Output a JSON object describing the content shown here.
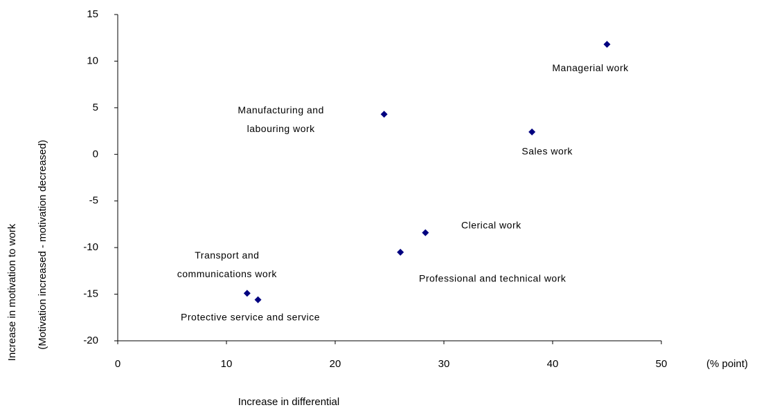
{
  "chart_data": {
    "type": "scatter",
    "x_label": "Increase in differential",
    "x_unit": "(% point)",
    "y_label_lines": [
      "Increase in motivation to work",
      "(Motivation increased - motivation decreased)"
    ],
    "color": "#000080",
    "xlim": [
      0,
      50
    ],
    "xticks": [
      0,
      10,
      20,
      30,
      40,
      50
    ],
    "ylim": [
      -20,
      15
    ],
    "yticks": [
      -20,
      -15,
      -10,
      -5,
      0,
      5,
      10,
      15
    ],
    "grid": false,
    "points": [
      {
        "label": [
          "Managerial work"
        ],
        "x": 45.0,
        "y": 11.8
      },
      {
        "label": [
          "Manufacturing and",
          "labouring work"
        ],
        "x": 24.5,
        "y": 4.3
      },
      {
        "label": [
          "Sales work"
        ],
        "x": 38.1,
        "y": 2.4
      },
      {
        "label": [
          "Clerical work"
        ],
        "x": 28.3,
        "y": -8.4
      },
      {
        "label": [
          "Professional and technical work"
        ],
        "x": 26.0,
        "y": -10.5
      },
      {
        "label": [
          "Transport and",
          "communications work"
        ],
        "x": 11.9,
        "y": -14.9
      },
      {
        "label": [
          "Protective service and service"
        ],
        "x": 12.9,
        "y": -15.6
      }
    ]
  }
}
